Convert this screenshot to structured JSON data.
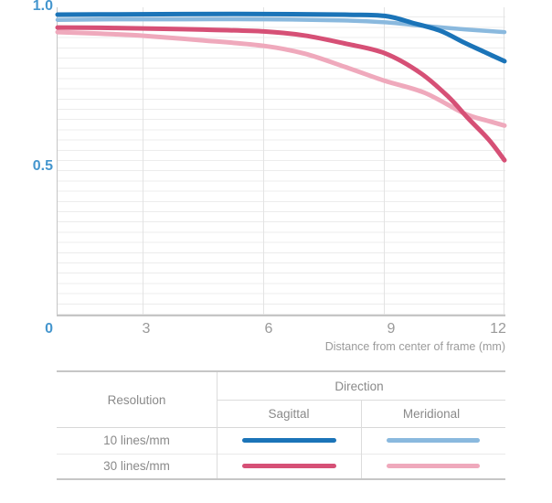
{
  "chart": {
    "y_ticks": [
      "1.0",
      "0.5"
    ],
    "origin_label": "0",
    "x_ticks": [
      "3",
      "6",
      "9",
      "12"
    ],
    "xlabel": "Distance from center of frame (mm)",
    "accent_label_color": "#4596ce",
    "muted_label_color": "#999999"
  },
  "chart_data": {
    "type": "line",
    "title": "",
    "xlabel": "Distance from center of frame (mm)",
    "ylabel": "",
    "xlim": [
      0,
      12
    ],
    "ylim": [
      0,
      1.0
    ],
    "x_tick_values": [
      0,
      3,
      6,
      9,
      12
    ],
    "y_tick_values": [
      0,
      0.5,
      1.0
    ],
    "grid": "fine horizontal lines, light vertical lines at x ticks",
    "legend_position": "table below chart",
    "series": [
      {
        "name": "10 lines/mm Sagittal",
        "color": "#1b74b8",
        "points": [
          [
            0,
            0.985
          ],
          [
            2,
            0.986
          ],
          [
            4,
            0.987
          ],
          [
            6,
            0.987
          ],
          [
            8,
            0.985
          ],
          [
            9,
            0.981
          ],
          [
            9.7,
            0.958
          ],
          [
            10.4,
            0.932
          ],
          [
            11,
            0.893
          ],
          [
            11.5,
            0.863
          ],
          [
            12,
            0.833
          ]
        ]
      },
      {
        "name": "10 lines/mm Meridional",
        "color": "#8ab9de",
        "points": [
          [
            0,
            0.968
          ],
          [
            2,
            0.97
          ],
          [
            4,
            0.97
          ],
          [
            6,
            0.97
          ],
          [
            8,
            0.966
          ],
          [
            9,
            0.96
          ],
          [
            10,
            0.948
          ],
          [
            11,
            0.937
          ],
          [
            12,
            0.928
          ]
        ]
      },
      {
        "name": "30 lines/mm Sagittal",
        "color": "#d65076",
        "points": [
          [
            0,
            0.943
          ],
          [
            1.5,
            0.942
          ],
          [
            3,
            0.94
          ],
          [
            4.5,
            0.936
          ],
          [
            6,
            0.93
          ],
          [
            7,
            0.917
          ],
          [
            8,
            0.891
          ],
          [
            9,
            0.859
          ],
          [
            9.9,
            0.794
          ],
          [
            10.6,
            0.716
          ],
          [
            11.1,
            0.645
          ],
          [
            11.6,
            0.578
          ],
          [
            12,
            0.51
          ]
        ]
      },
      {
        "name": "30 lines/mm Meridional",
        "color": "#efa9bc",
        "points": [
          [
            0,
            0.928
          ],
          [
            1.5,
            0.923
          ],
          [
            3,
            0.916
          ],
          [
            4.5,
            0.901
          ],
          [
            6,
            0.883
          ],
          [
            7,
            0.858
          ],
          [
            8,
            0.815
          ],
          [
            9,
            0.769
          ],
          [
            10,
            0.73
          ],
          [
            11,
            0.662
          ],
          [
            11.6,
            0.638
          ],
          [
            12,
            0.623
          ]
        ]
      }
    ]
  },
  "legend_table": {
    "resolution_header": "Resolution",
    "direction_header": "Direction",
    "columns": [
      "Sagittal",
      "Meridional"
    ],
    "rows": [
      {
        "resolution": "10 lines/mm",
        "sagittal_color": "#1b74b8",
        "meridional_color": "#8ab9de"
      },
      {
        "resolution": "30 lines/mm",
        "sagittal_color": "#d65076",
        "meridional_color": "#efa9bc"
      }
    ]
  }
}
